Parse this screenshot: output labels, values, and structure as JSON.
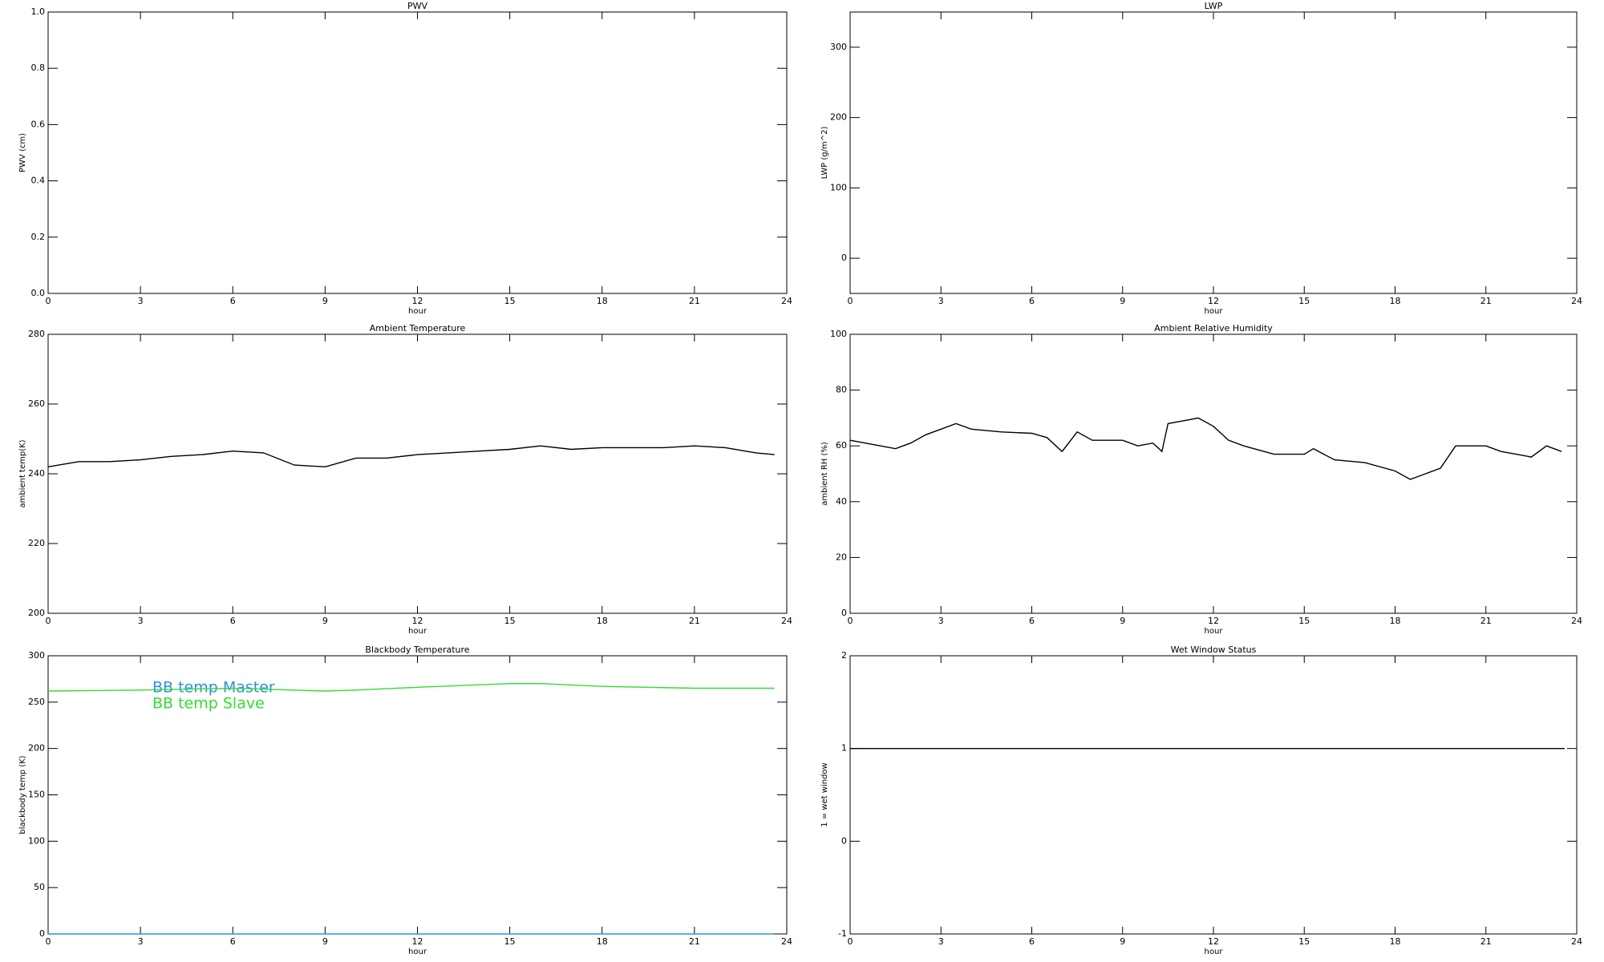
{
  "chart_data": [
    {
      "type": "line",
      "title": "PWV",
      "xlabel": "hour",
      "ylabel": "PWV (cm)",
      "xlim": [
        0,
        24
      ],
      "xticks": [
        0,
        3,
        6,
        9,
        12,
        15,
        18,
        21,
        24
      ],
      "ylim": [
        0,
        1
      ],
      "yticks": [
        {
          "value": 0,
          "label": "0.0"
        },
        0.2,
        0.4,
        0.6,
        0.8,
        {
          "value": 1,
          "label": "1.0"
        }
      ],
      "series": []
    },
    {
      "type": "line",
      "title": "LWP",
      "xlabel": "hour",
      "ylabel": "LWP (g/m^2)",
      "xlim": [
        0,
        24
      ],
      "xticks": [
        0,
        3,
        6,
        9,
        12,
        15,
        18,
        21,
        24
      ],
      "ylim": [
        -50,
        350
      ],
      "yticks": [
        0,
        100,
        200,
        300
      ],
      "series": []
    },
    {
      "type": "line",
      "title": "Ambient Temperature",
      "xlabel": "hour",
      "ylabel": "ambient temp(K)",
      "xlim": [
        0,
        24
      ],
      "xticks": [
        0,
        3,
        6,
        9,
        12,
        15,
        18,
        21,
        24
      ],
      "ylim": [
        200,
        280
      ],
      "yticks": [
        200,
        220,
        240,
        260,
        280
      ],
      "series": [
        {
          "color": "#000000",
          "x": [
            0,
            1,
            2,
            3,
            4,
            5,
            6,
            7,
            8,
            9,
            10,
            11,
            12,
            13,
            14,
            15,
            16,
            17,
            18,
            19,
            20,
            21,
            22,
            23,
            23.6
          ],
          "values": [
            242,
            243.5,
            243.5,
            244,
            245,
            245.5,
            246.5,
            246,
            242.5,
            242,
            244.5,
            244.5,
            245.5,
            246,
            246.5,
            247,
            248,
            247,
            247.5,
            247.5,
            247.5,
            248,
            247.5,
            246,
            245.5
          ]
        }
      ]
    },
    {
      "type": "line",
      "title": "Ambient Relative Humidity",
      "xlabel": "hour",
      "ylabel": "ambient RH (%)",
      "xlim": [
        0,
        24
      ],
      "xticks": [
        0,
        3,
        6,
        9,
        12,
        15,
        18,
        21,
        24
      ],
      "ylim": [
        0,
        100
      ],
      "yticks": [
        0,
        20,
        40,
        60,
        80,
        100
      ],
      "series": [
        {
          "color": "#000000",
          "x": [
            0,
            0.5,
            1,
            1.5,
            2,
            2.5,
            3,
            3.5,
            4,
            5,
            6,
            6.5,
            7,
            7.5,
            8,
            9,
            9.5,
            10,
            10.3,
            10.5,
            11,
            11.5,
            12,
            12.5,
            13,
            14,
            15,
            15.3,
            16,
            17,
            18,
            18.5,
            19,
            19.5,
            20,
            21,
            21.5,
            22,
            22.5,
            23,
            23.5
          ],
          "values": [
            62,
            61,
            60,
            59,
            61,
            64,
            66,
            68,
            66,
            65,
            64.5,
            63,
            58,
            65,
            62,
            62,
            60,
            61,
            58,
            68,
            69,
            70,
            67,
            62,
            60,
            57,
            57,
            59,
            55,
            54,
            51,
            48,
            50,
            52,
            60,
            60,
            58,
            57,
            56,
            60,
            58
          ]
        }
      ]
    },
    {
      "type": "line",
      "title": "Blackbody Temperature",
      "xlabel": "hour",
      "ylabel": "blackbody temp (K)",
      "xlim": [
        0,
        24
      ],
      "xticks": [
        0,
        3,
        6,
        9,
        12,
        15,
        18,
        21,
        24
      ],
      "ylim": [
        0,
        300
      ],
      "yticks": [
        0,
        50,
        100,
        150,
        200,
        250,
        300
      ],
      "series": [
        {
          "name": "BB temp Master",
          "color": "#2f8fe0",
          "x": [
            0,
            3,
            6,
            9,
            12,
            15,
            18,
            21,
            23.6
          ],
          "values": [
            0,
            0,
            0,
            0,
            0,
            0,
            0,
            0,
            0
          ]
        },
        {
          "name": "BB temp Slave",
          "color": "#33dd33",
          "x": [
            0,
            3,
            6,
            9,
            10,
            12,
            15,
            16,
            18,
            21,
            23.6
          ],
          "values": [
            262,
            263,
            265,
            262,
            263,
            266,
            270,
            270,
            267,
            265,
            265
          ]
        }
      ]
    },
    {
      "type": "line",
      "title": "Wet Window Status",
      "xlabel": "hour",
      "ylabel": "1 = wet window",
      "xlim": [
        0,
        24
      ],
      "xticks": [
        0,
        3,
        6,
        9,
        12,
        15,
        18,
        21,
        24
      ],
      "ylim": [
        -1,
        2
      ],
      "yticks": [
        -1,
        0,
        1,
        2
      ],
      "series": [
        {
          "color": "#000000",
          "x": [
            0,
            23.6
          ],
          "values": [
            1,
            1
          ]
        }
      ]
    }
  ]
}
